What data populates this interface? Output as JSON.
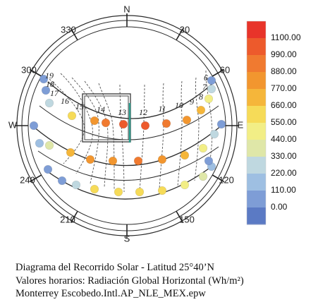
{
  "caption": {
    "line1": "Diagrama del Recorrido Solar - Latitud 25°40’N",
    "line2": "Valores horarios: Radiación Global Horizontal (Wh/m²)",
    "line3": "Monterrey Escobedo.Intl.AP_NLE_MEX.epw"
  },
  "chart_data": {
    "type": "scatter",
    "projection": "stereographic sun-path diagram",
    "latitude": "25°40’N",
    "compass_labels": {
      "cardinals": [
        "N",
        "E",
        "S",
        "W"
      ],
      "azimuths": [
        "30",
        "60",
        "120",
        "150",
        "210",
        "240",
        "300",
        "330"
      ]
    },
    "hour_labels": [
      "6",
      "7",
      "8",
      "9",
      "10",
      "11",
      "12",
      "13",
      "14",
      "15",
      "16",
      "17",
      "18",
      "19"
    ],
    "legend": {
      "values": [
        "1100.00",
        "990.00",
        "880.00",
        "770.00",
        "660.00",
        "550.00",
        "440.00",
        "330.00",
        "220.00",
        "110.00",
        "0.00"
      ],
      "colors": [
        "#e8342a",
        "#ed5a2c",
        "#f07a30",
        "#f2962f",
        "#f5b63a",
        "#f6db58",
        "#f2ee86",
        "#dfe7a8",
        "#bfd8e0",
        "#9ebfe2",
        "#7e9dd6",
        "#5b7ac4"
      ]
    },
    "series": [
      {
        "path": "summer",
        "points": [
          {
            "hour": 19,
            "value": 100
          },
          {
            "hour": 18,
            "value": 120
          },
          {
            "hour": 17,
            "value": 330
          },
          {
            "hour": 16,
            "value": 560
          },
          {
            "hour": 15,
            "value": 800
          },
          {
            "hour": 14,
            "value": 900
          },
          {
            "hour": 13,
            "value": 1000
          },
          {
            "hour": 12,
            "value": 1000
          },
          {
            "hour": 11,
            "value": 950
          },
          {
            "hour": 10,
            "value": 850
          },
          {
            "hour": 9,
            "value": 720
          },
          {
            "hour": 8,
            "value": 520
          },
          {
            "hour": 7,
            "value": 300
          },
          {
            "hour": 6,
            "value": 120
          }
        ]
      },
      {
        "path": "equinox",
        "points": [
          {
            "hour": 18,
            "value": 80
          },
          {
            "hour": 17,
            "value": 200
          },
          {
            "hour": 16,
            "value": 450
          },
          {
            "hour": 15,
            "value": 700
          },
          {
            "hour": 14,
            "value": 800
          },
          {
            "hour": 13,
            "value": 850
          },
          {
            "hour": 12,
            "value": 880
          },
          {
            "hour": 11,
            "value": 800
          },
          {
            "hour": 10,
            "value": 700
          },
          {
            "hour": 9,
            "value": 550
          },
          {
            "hour": 8,
            "value": 300
          },
          {
            "hour": 7,
            "value": 60
          }
        ]
      },
      {
        "path": "winter",
        "points": [
          {
            "hour": 18,
            "value": 80
          },
          {
            "hour": 17,
            "value": 150
          },
          {
            "hour": 16,
            "value": 300
          },
          {
            "hour": 15,
            "value": 600
          },
          {
            "hour": 14,
            "value": 650
          },
          {
            "hour": 13,
            "value": 650
          },
          {
            "hour": 12,
            "value": 620
          },
          {
            "hour": 11,
            "value": 500
          },
          {
            "hour": 10,
            "value": 380
          },
          {
            "hour": 9,
            "value": 200
          },
          {
            "hour": 8,
            "value": 60
          }
        ]
      }
    ]
  }
}
